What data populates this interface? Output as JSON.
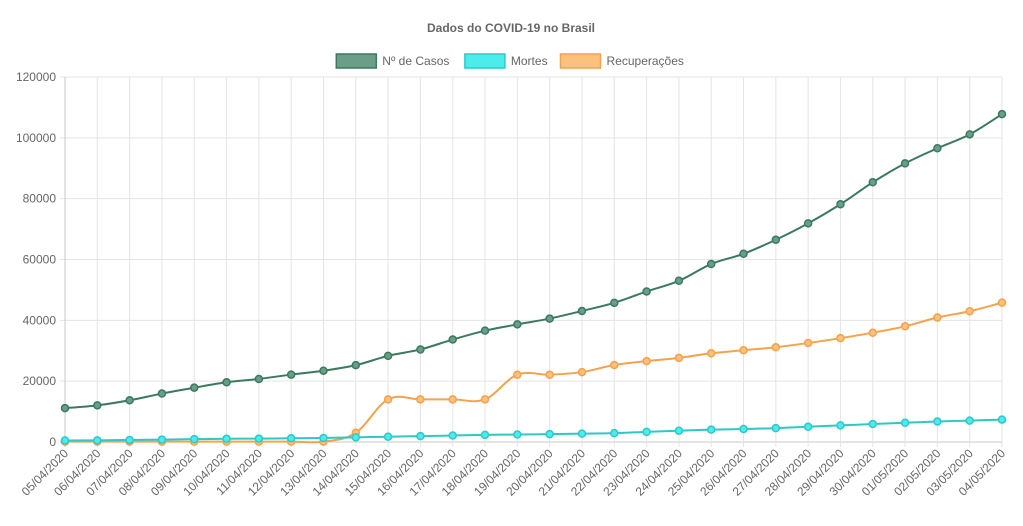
{
  "chart_data": {
    "type": "line",
    "title": "Dados do COVID-19 no Brasil",
    "xlabel": "",
    "ylabel": "",
    "ylim": [
      0,
      120000
    ],
    "yticks": [
      0,
      20000,
      40000,
      60000,
      80000,
      100000,
      120000
    ],
    "ytick_labels": [
      "0",
      "20000",
      "40000",
      "60000",
      "80000",
      "100000",
      "120000"
    ],
    "grid": true,
    "legend_position": "top",
    "categories": [
      "05/04/2020",
      "06/04/2020",
      "07/04/2020",
      "08/04/2020",
      "09/04/2020",
      "10/04/2020",
      "11/04/2020",
      "12/04/2020",
      "13/04/2020",
      "14/04/2020",
      "15/04/2020",
      "16/04/2020",
      "17/04/2020",
      "18/04/2020",
      "19/04/2020",
      "20/04/2020",
      "21/04/2020",
      "22/04/2020",
      "23/04/2020",
      "24/04/2020",
      "25/04/2020",
      "26/04/2020",
      "27/04/2020",
      "28/04/2020",
      "29/04/2020",
      "30/04/2020",
      "01/05/2020",
      "02/05/2020",
      "03/05/2020",
      "04/05/2020"
    ],
    "series": [
      {
        "name": "Nº de Casos",
        "color": "#3a7a5e",
        "fill": "#6a9e88",
        "values": [
          11130,
          12056,
          13717,
          15927,
          17857,
          19638,
          20727,
          22169,
          23430,
          25262,
          28320,
          30425,
          33682,
          36599,
          38654,
          40581,
          43079,
          45757,
          49492,
          52995,
          58509,
          61888,
          66501,
          71886,
          78162,
          85380,
          91589,
          96559,
          101147,
          107780
        ]
      },
      {
        "name": "Mortes",
        "color": "#2ec8c8",
        "fill": "#4cecec",
        "values": [
          486,
          553,
          667,
          800,
          941,
          1056,
          1124,
          1223,
          1328,
          1532,
          1736,
          1924,
          2141,
          2354,
          2462,
          2575,
          2741,
          2906,
          3331,
          3704,
          4057,
          4271,
          4543,
          5017,
          5466,
          5901,
          6329,
          6750,
          7025,
          7367
        ]
      },
      {
        "name": "Recuperações",
        "color": "#f5a24a",
        "fill": "#fcc07f",
        "values": [
          127,
          127,
          127,
          127,
          127,
          127,
          127,
          127,
          127,
          3046,
          14026,
          14026,
          14026,
          14026,
          22130,
          22130,
          22991,
          25318,
          26573,
          27655,
          29160,
          30152,
          31142,
          32544,
          34132,
          35935,
          38039,
          40937,
          42991,
          45815
        ]
      }
    ]
  }
}
